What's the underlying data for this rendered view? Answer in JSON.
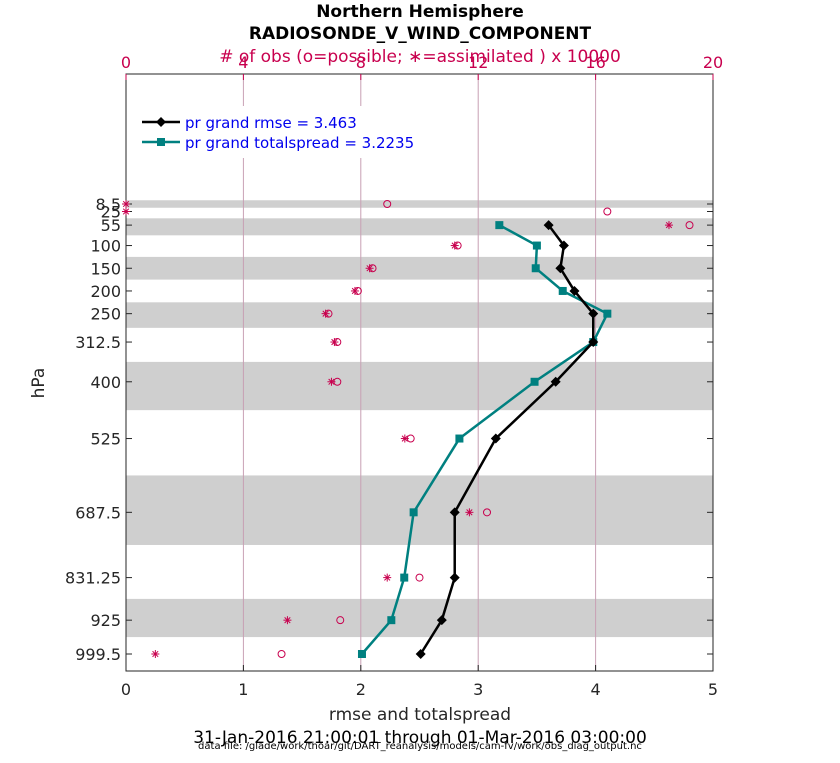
{
  "chart_data": {
    "type": "line",
    "title": "Northern Hemisphere",
    "subtitle": "RADIOSONDE_V_WIND_COMPONENT",
    "top_axis_label": "# of obs (o=possible; ∗=assimilated ) x 10000",
    "xlabel": "rmse and totalspread",
    "ylabel": "hPa",
    "date_range": "31-Jan-2016 21:00:01 through 01-Mar-2016 03:00:00",
    "footer": "data file: /glade/work/thoar/git/DART_reanalysis/models/cam-fv/work/obs_diag_output.nc",
    "xlim": [
      0,
      5
    ],
    "x_ticks": [
      "0",
      "1",
      "2",
      "3",
      "4",
      "5"
    ],
    "top_xlim": [
      0,
      20
    ],
    "top_ticks": [
      "0",
      "4",
      "8",
      "12",
      "16",
      "20"
    ],
    "levels": [
      8.5,
      25,
      55,
      100,
      150,
      200,
      250,
      312.5,
      400,
      525,
      687.5,
      831.25,
      925,
      999.5
    ],
    "level_labels": [
      "8.5",
      "25",
      "55",
      "100",
      "150",
      "200",
      "250",
      "312.5",
      "400",
      "525",
      "687.5",
      "831.25",
      "925",
      "999.5"
    ],
    "series": [
      {
        "name": "pr grand rmse = 3.463",
        "color": "#000000",
        "marker": "diamond",
        "levels": [
          55,
          100,
          150,
          200,
          250,
          312.5,
          400,
          525,
          687.5,
          831.25,
          925,
          999.5
        ],
        "values": [
          3.6,
          3.73,
          3.7,
          3.82,
          3.98,
          3.98,
          3.66,
          3.15,
          2.8,
          2.8,
          2.69,
          2.51
        ]
      },
      {
        "name": "pr grand totalspread = 3.2235",
        "color": "#008080",
        "marker": "square",
        "levels": [
          55,
          100,
          150,
          200,
          250,
          312.5,
          400,
          525,
          687.5,
          831.25,
          925,
          999.5
        ],
        "values": [
          3.18,
          3.5,
          3.49,
          3.72,
          4.1,
          3.98,
          3.48,
          2.84,
          2.45,
          2.37,
          2.26,
          2.01
        ]
      }
    ],
    "obs_possible": {
      "levels": [
        8.5,
        25,
        55,
        100,
        150,
        200,
        250,
        312.5,
        400,
        525,
        687.5,
        831.25,
        925,
        999.5
      ],
      "values": [
        8.9,
        16.4,
        19.2,
        11.3,
        8.4,
        7.9,
        6.9,
        7.2,
        7.2,
        9.7,
        12.3,
        10.0,
        7.3,
        5.3
      ]
    },
    "obs_assimilated": {
      "levels": [
        8.5,
        25,
        55,
        100,
        150,
        200,
        250,
        312.5,
        400,
        525,
        687.5,
        831.25,
        925,
        999.5
      ],
      "values": [
        0.0,
        0.0,
        18.5,
        11.2,
        8.3,
        7.8,
        6.8,
        7.1,
        7.0,
        9.5,
        11.7,
        8.9,
        5.5,
        1.0
      ]
    }
  }
}
